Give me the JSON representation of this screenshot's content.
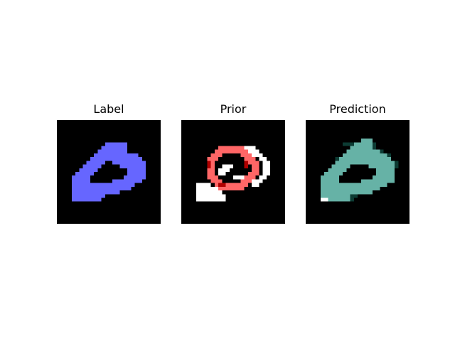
{
  "panels": [
    {
      "title": "Label",
      "colors": [
        "#000000",
        "#6666ff"
      ]
    },
    {
      "title": "Prior",
      "colors": [
        "#000000",
        "#ff6666",
        "#ffffff",
        "#b00000"
      ]
    },
    {
      "title": "Prediction",
      "colors": [
        "#000000",
        "#66b2a6",
        "#ffffff",
        "#0d3b33"
      ]
    }
  ]
}
